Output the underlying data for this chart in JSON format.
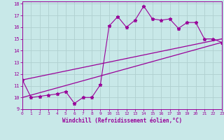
{
  "title": "",
  "xlabel": "Windchill (Refroidissement éolien,°C)",
  "ylabel": "",
  "bg_color": "#c8e8e8",
  "line_color": "#990099",
  "grid_color": "#b0d0d0",
  "x_data": [
    0,
    1,
    2,
    3,
    4,
    5,
    6,
    7,
    8,
    9,
    10,
    11,
    12,
    13,
    14,
    15,
    16,
    17,
    18,
    19,
    20,
    21,
    22,
    23
  ],
  "y_main": [
    11.5,
    10.0,
    10.1,
    10.2,
    10.3,
    10.5,
    9.5,
    10.0,
    10.0,
    11.1,
    16.1,
    16.9,
    16.0,
    16.6,
    17.8,
    16.7,
    16.6,
    16.7,
    15.9,
    16.4,
    16.4,
    15.0,
    15.0,
    14.7
  ],
  "y_line1_x": [
    0,
    23
  ],
  "y_line1_y": [
    11.5,
    15.0
  ],
  "y_line2_x": [
    0,
    23
  ],
  "y_line2_y": [
    10.0,
    14.7
  ],
  "xlim": [
    0,
    23
  ],
  "ylim": [
    9.0,
    18.2
  ],
  "yticks": [
    9,
    10,
    11,
    12,
    13,
    14,
    15,
    16,
    17,
    18
  ],
  "xticks": [
    0,
    1,
    2,
    3,
    4,
    5,
    6,
    7,
    8,
    9,
    10,
    11,
    12,
    13,
    14,
    15,
    16,
    17,
    18,
    19,
    20,
    21,
    22,
    23
  ]
}
